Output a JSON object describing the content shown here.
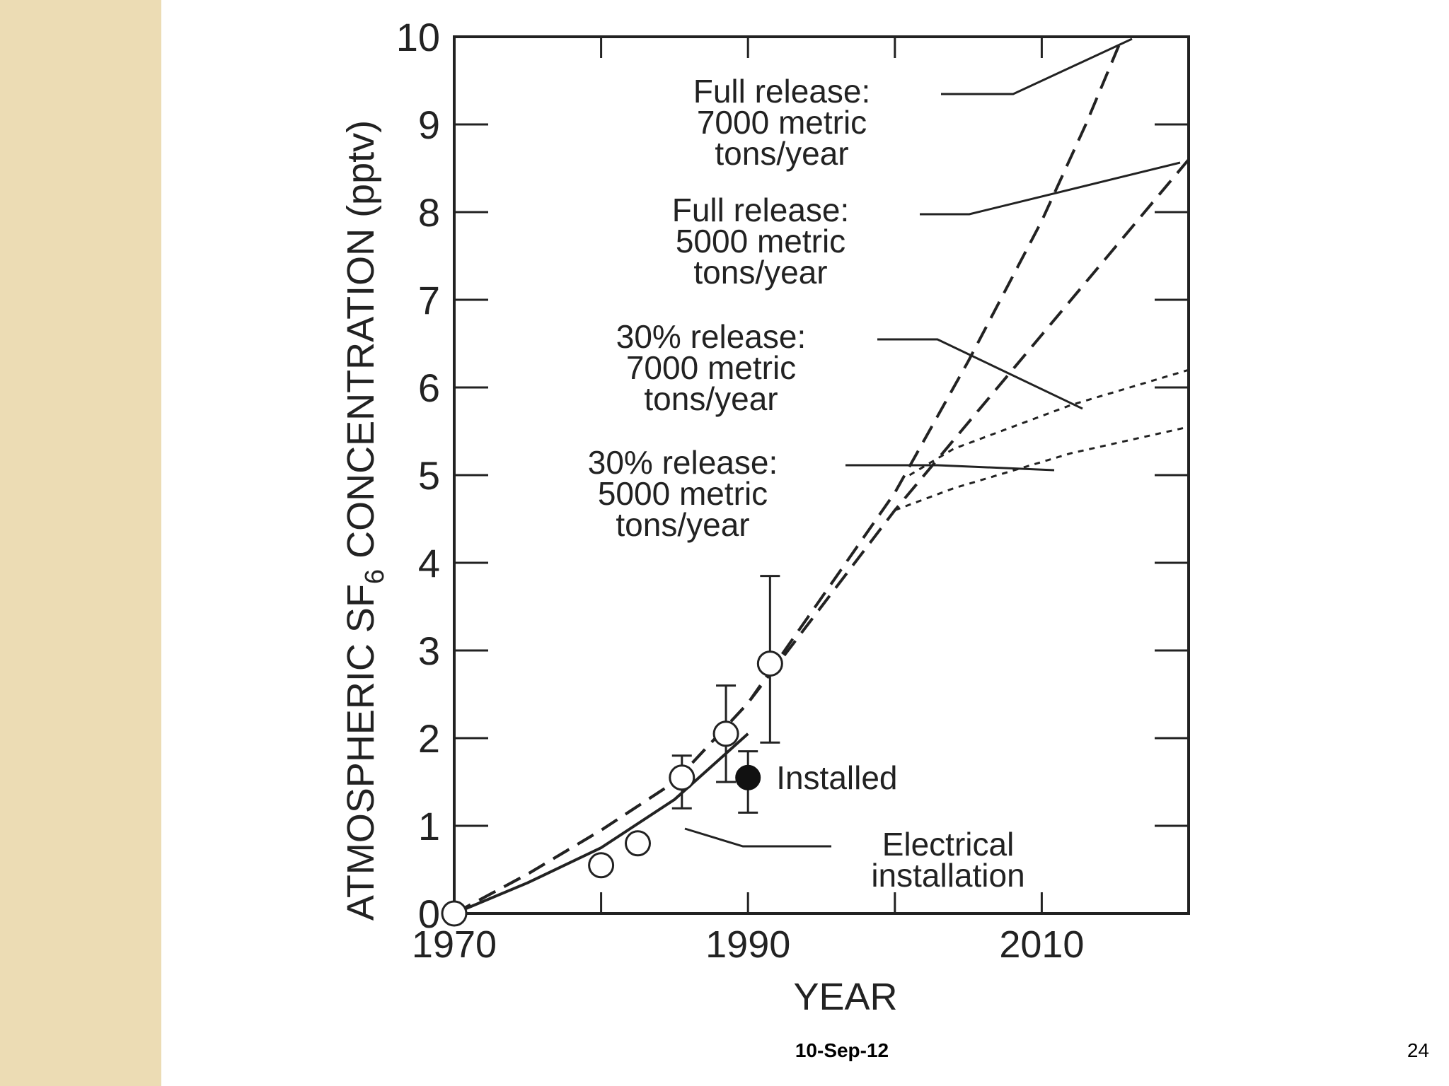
{
  "slide": {
    "date": "10-Sep-12",
    "page_number": "24",
    "sidebar_color": "#ecdcb4"
  },
  "chart_data": {
    "type": "line",
    "title": "",
    "xlabel": "YEAR",
    "ylabel_prefix": "ATMOSPHERIC SF",
    "ylabel_subscript": "6",
    "ylabel_suffix": " CONCENTRATION (pptv)",
    "xlim": [
      1970,
      2020
    ],
    "ylim": [
      0,
      10
    ],
    "x_tick_labels": [
      1970,
      1990,
      2010
    ],
    "x_minor_ticks": [
      1980,
      2000,
      2020
    ],
    "y_tick_labels": [
      0,
      1,
      2,
      3,
      4,
      5,
      6,
      7,
      8,
      9,
      10
    ],
    "series": [
      {
        "name": "Full release: 7000 metric tons/year",
        "label_lines": [
          "Full release:",
          "7000 metric",
          "tons/year"
        ],
        "style": "dashed",
        "x": [
          1970,
          1975,
          1980,
          1985,
          1990,
          1995,
          2000,
          2005,
          2010,
          2013,
          2015.5
        ],
        "y": [
          0,
          0.45,
          0.95,
          1.5,
          2.4,
          3.6,
          4.8,
          6.3,
          7.9,
          9.0,
          10
        ]
      },
      {
        "name": "Full release: 5000 metric tons/year",
        "label_lines": [
          "Full release:",
          "5000 metric",
          "tons/year"
        ],
        "style": "dashed",
        "x": [
          1970,
          1975,
          1980,
          1985,
          1990,
          1995,
          2000,
          2005,
          2010,
          2015,
          2020
        ],
        "y": [
          0,
          0.45,
          0.95,
          1.5,
          2.4,
          3.5,
          4.6,
          5.6,
          6.6,
          7.6,
          8.6
        ]
      },
      {
        "name": "30% release: 7000 metric tons/year",
        "label_lines": [
          "30% release:",
          "7000 metric",
          "tons/year"
        ],
        "style": "dotted",
        "x": [
          2001,
          2004,
          2008,
          2012,
          2016,
          2020
        ],
        "y": [
          5.0,
          5.3,
          5.55,
          5.8,
          6.0,
          6.2
        ]
      },
      {
        "name": "30% release: 5000 metric tons/year",
        "label_lines": [
          "30% release:",
          "5000 metric",
          "tons/year"
        ],
        "style": "dotted",
        "x": [
          2000,
          2004,
          2008,
          2012,
          2016,
          2020
        ],
        "y": [
          4.6,
          4.85,
          5.05,
          5.25,
          5.4,
          5.55
        ]
      },
      {
        "name": "Electrical installation",
        "label_lines": [
          "Electrical",
          "installation"
        ],
        "style": "solid",
        "x": [
          1970,
          1975,
          1980,
          1985,
          1990
        ],
        "y": [
          0,
          0.35,
          0.75,
          1.3,
          2.05
        ]
      }
    ],
    "measurements": [
      {
        "x": 1970,
        "y": 0,
        "err": null
      },
      {
        "x": 1980,
        "y": 0.55,
        "err": null
      },
      {
        "x": 1982.5,
        "y": 0.8,
        "err": null
      },
      {
        "x": 1985.5,
        "y": 1.55,
        "err": [
          1.2,
          1.8
        ]
      },
      {
        "x": 1988.5,
        "y": 2.05,
        "err": [
          1.5,
          2.6
        ]
      },
      {
        "x": 1991.5,
        "y": 2.85,
        "err": [
          1.95,
          3.85
        ]
      }
    ],
    "installed": {
      "label": "Installed",
      "x": 1990,
      "y": 1.55,
      "err": [
        1.15,
        1.85
      ]
    }
  }
}
